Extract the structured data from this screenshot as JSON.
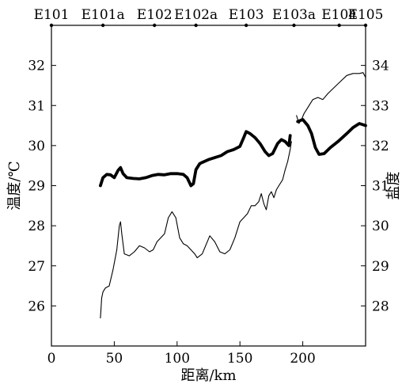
{
  "chart_data": {
    "type": "line",
    "title": "",
    "xlabel": "距离/km",
    "ylabel_left": "温度/℃",
    "ylabel_right": "盐度",
    "xlim": [
      0,
      250
    ],
    "ylim_left": [
      25,
      33
    ],
    "ylim_right": [
      27,
      35
    ],
    "x_ticks": [
      0,
      50,
      100,
      150,
      200
    ],
    "x_tick_labels": [
      "0",
      "50",
      "100",
      "150",
      "200"
    ],
    "y_left_ticks": [
      26,
      27,
      28,
      29,
      30,
      31,
      32
    ],
    "y_left_tick_labels": [
      "26",
      "27",
      "28",
      "29",
      "30",
      "31",
      "32"
    ],
    "y_right_ticks": [
      28,
      29,
      30,
      31,
      32,
      33,
      34
    ],
    "y_right_tick_labels": [
      "28",
      "29",
      "30",
      "31",
      "32",
      "33",
      "34"
    ],
    "grid": false,
    "stations": [
      {
        "label": "E101",
        "x": 0
      },
      {
        "label": "E101a",
        "x": 41
      },
      {
        "label": "E102",
        "x": 82
      },
      {
        "label": "E102a",
        "x": 115
      },
      {
        "label": "E103",
        "x": 155
      },
      {
        "label": "E103a",
        "x": 193
      },
      {
        "label": "E104",
        "x": 229
      },
      {
        "label": "E105",
        "x": 250
      }
    ],
    "series": [
      {
        "axis": "left",
        "style": "thick",
        "segments": [
          [
            [
              39,
              29.0
            ],
            [
              41,
              29.2
            ],
            [
              44,
              29.28
            ],
            [
              47,
              29.27
            ],
            [
              50,
              29.2
            ],
            [
              53,
              29.38
            ],
            [
              55,
              29.45
            ],
            [
              57,
              29.3
            ],
            [
              60,
              29.2
            ],
            [
              65,
              29.18
            ],
            [
              70,
              29.17
            ],
            [
              75,
              29.2
            ],
            [
              80,
              29.25
            ],
            [
              85,
              29.28
            ],
            [
              90,
              29.27
            ],
            [
              95,
              29.3
            ],
            [
              100,
              29.3
            ],
            [
              105,
              29.28
            ],
            [
              108,
              29.2
            ],
            [
              111,
              29.0
            ],
            [
              113,
              29.05
            ],
            [
              115,
              29.4
            ],
            [
              118,
              29.55
            ],
            [
              120,
              29.58
            ],
            [
              125,
              29.65
            ],
            [
              130,
              29.7
            ],
            [
              135,
              29.75
            ],
            [
              140,
              29.85
            ],
            [
              145,
              29.9
            ],
            [
              150,
              29.98
            ],
            [
              153,
              30.2
            ],
            [
              155,
              30.35
            ],
            [
              158,
              30.3
            ],
            [
              162,
              30.2
            ],
            [
              166,
              30.05
            ],
            [
              170,
              29.85
            ],
            [
              173,
              29.75
            ],
            [
              176,
              29.8
            ],
            [
              180,
              30.05
            ],
            [
              183,
              30.15
            ],
            [
              186,
              30.1
            ],
            [
              189,
              30.0
            ],
            [
              190,
              30.25
            ]
          ],
          [
            [
              196,
              30.6
            ],
            [
              200,
              30.65
            ],
            [
              204,
              30.5
            ],
            [
              207,
              30.3
            ],
            [
              210,
              29.95
            ],
            [
              213,
              29.78
            ],
            [
              217,
              29.8
            ],
            [
              222,
              29.95
            ],
            [
              228,
              30.1
            ],
            [
              235,
              30.3
            ],
            [
              240,
              30.45
            ],
            [
              245,
              30.55
            ],
            [
              250,
              30.5
            ]
          ]
        ]
      },
      {
        "axis": "right",
        "style": "thin",
        "segments": [
          [
            [
              39,
              27.7
            ],
            [
              40,
              28.2
            ],
            [
              41,
              28.35
            ],
            [
              43,
              28.45
            ],
            [
              46,
              28.5
            ],
            [
              49,
              28.9
            ],
            [
              52,
              29.4
            ],
            [
              54,
              30.0
            ],
            [
              55,
              30.1
            ],
            [
              56,
              29.8
            ],
            [
              58,
              29.3
            ],
            [
              62,
              29.25
            ],
            [
              66,
              29.35
            ],
            [
              70,
              29.5
            ],
            [
              74,
              29.45
            ],
            [
              78,
              29.35
            ],
            [
              81,
              29.4
            ],
            [
              84,
              29.6
            ],
            [
              87,
              29.7
            ],
            [
              90,
              29.8
            ],
            [
              93,
              30.2
            ],
            [
              96,
              30.35
            ],
            [
              99,
              30.2
            ],
            [
              102,
              29.7
            ],
            [
              105,
              29.55
            ],
            [
              108,
              29.5
            ],
            [
              111,
              29.4
            ],
            [
              114,
              29.3
            ],
            [
              116,
              29.2
            ],
            [
              120,
              29.3
            ],
            [
              124,
              29.6
            ],
            [
              126,
              29.75
            ],
            [
              130,
              29.6
            ],
            [
              134,
              29.35
            ],
            [
              138,
              29.3
            ],
            [
              142,
              29.4
            ],
            [
              146,
              29.7
            ],
            [
              150,
              30.1
            ],
            [
              153,
              30.2
            ],
            [
              156,
              30.3
            ],
            [
              159,
              30.5
            ],
            [
              162,
              30.5
            ],
            [
              165,
              30.6
            ],
            [
              167,
              30.8
            ],
            [
              169,
              30.55
            ],
            [
              171,
              30.4
            ],
            [
              173,
              30.75
            ],
            [
              175,
              30.85
            ],
            [
              177,
              30.7
            ],
            [
              179,
              30.9
            ],
            [
              181,
              31.0
            ],
            [
              184,
              31.15
            ],
            [
              186,
              31.4
            ],
            [
              188,
              31.6
            ],
            [
              190,
              31.9
            ],
            [
              191,
              32.1
            ]
          ],
          [
            [
              195,
              32.75
            ],
            [
              197,
              32.55
            ],
            [
              199,
              32.65
            ],
            [
              201,
              32.8
            ],
            [
              204,
              32.95
            ],
            [
              208,
              33.15
            ],
            [
              212,
              33.2
            ],
            [
              216,
              33.15
            ],
            [
              220,
              33.3
            ],
            [
              225,
              33.45
            ],
            [
              230,
              33.6
            ],
            [
              235,
              33.75
            ],
            [
              240,
              33.8
            ],
            [
              245,
              33.8
            ],
            [
              248,
              33.82
            ],
            [
              250,
              33.7
            ]
          ]
        ]
      }
    ]
  }
}
